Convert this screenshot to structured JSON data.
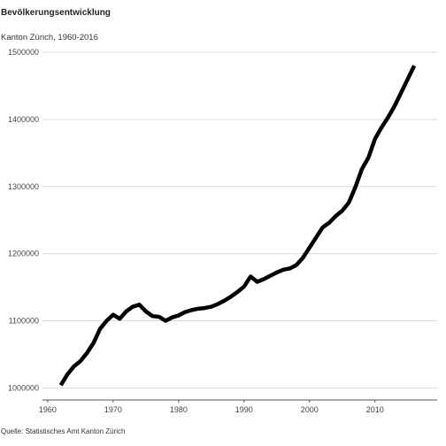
{
  "title": "Bevölkerungsentwicklung",
  "subtitle": "Kanton Zürich, 1960-2016",
  "caption": "Quelle: Statistisches Amt Kanton Zürich",
  "chart_data": {
    "type": "line",
    "x": [
      1962,
      1963,
      1964,
      1965,
      1966,
      1967,
      1968,
      1969,
      1970,
      1971,
      1972,
      1973,
      1974,
      1975,
      1976,
      1977,
      1978,
      1979,
      1980,
      1981,
      1982,
      1983,
      1984,
      1985,
      1986,
      1987,
      1988,
      1989,
      1990,
      1991,
      1992,
      1993,
      1994,
      1995,
      1996,
      1997,
      1998,
      1999,
      2000,
      2001,
      2002,
      2003,
      2004,
      2005,
      2006,
      2007,
      2008,
      2009,
      2010,
      2011,
      2012,
      2013,
      2014,
      2015,
      2016
    ],
    "y": [
      1004000,
      1020000,
      1032000,
      1040000,
      1052000,
      1067000,
      1088000,
      1100000,
      1109000,
      1103000,
      1114000,
      1121000,
      1124000,
      1114000,
      1107000,
      1106000,
      1100000,
      1105000,
      1108000,
      1113000,
      1116000,
      1118000,
      1119000,
      1121000,
      1125000,
      1130000,
      1136000,
      1143000,
      1151000,
      1166000,
      1158000,
      1162000,
      1167000,
      1172000,
      1176000,
      1178000,
      1183000,
      1194000,
      1209000,
      1224000,
      1239000,
      1246000,
      1256000,
      1264000,
      1276000,
      1299000,
      1326000,
      1343000,
      1371000,
      1388000,
      1403000,
      1420000,
      1440000,
      1460000,
      1480000
    ],
    "xlim": [
      1959.2,
      2019.5
    ],
    "ylim": [
      982000,
      1512000
    ],
    "xticks": [
      1960,
      1970,
      1980,
      1990,
      2000,
      2010
    ],
    "yticks": [
      1000000,
      1100000,
      1200000,
      1300000,
      1400000,
      1500000
    ],
    "grid": "horizontal",
    "line_color": "#000000",
    "grid_color": "#d9d9d9"
  }
}
